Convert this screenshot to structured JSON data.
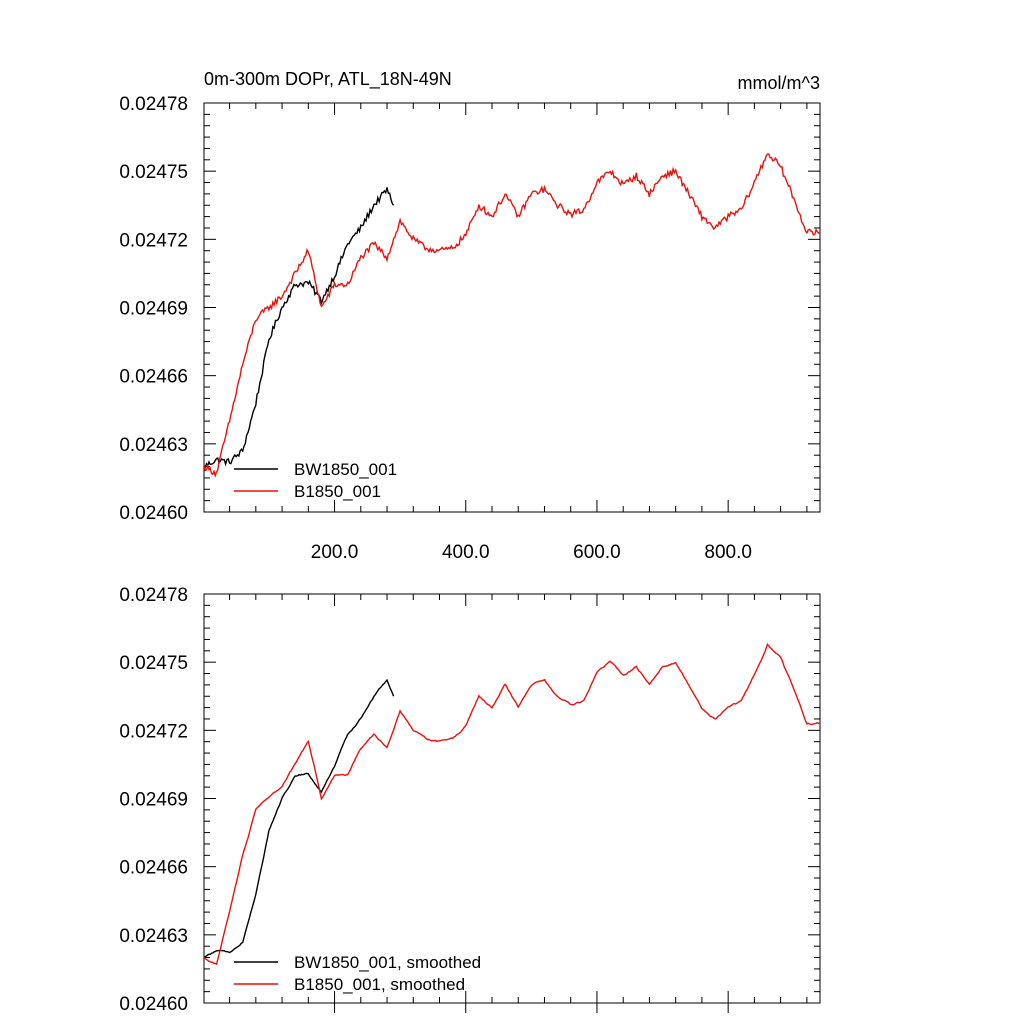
{
  "chart_data": [
    {
      "type": "line",
      "title": "0m-300m DOPr, ATL_18N-49N",
      "units": "mmol/m^3",
      "xlabel": "",
      "ylabel": "",
      "xlim": [
        1,
        940
      ],
      "ylim": [
        0.0246,
        0.02478
      ],
      "x_ticks": [
        200,
        400,
        600,
        800
      ],
      "x_tick_labels": [
        "200.0",
        "400.0",
        "600.0",
        "800.0"
      ],
      "y_ticks": [
        0.0246,
        0.02463,
        0.02466,
        0.02469,
        0.02472,
        0.02475,
        0.02478
      ],
      "y_tick_labels": [
        "0.02460",
        "0.02463",
        "0.02466",
        "0.02469",
        "0.02472",
        "0.02475",
        "0.02478"
      ],
      "grid": false,
      "legend_position": "bottom-left",
      "series": [
        {
          "name": "BW1850_001",
          "color": "#000000",
          "x": [
            1,
            20,
            40,
            60,
            80,
            100,
            120,
            140,
            160,
            180,
            200,
            220,
            240,
            260,
            280,
            290
          ],
          "y": [
            0.02462,
            0.024623,
            0.024622,
            0.024627,
            0.024648,
            0.024676,
            0.02469,
            0.0247,
            0.024701,
            0.024693,
            0.024704,
            0.024718,
            0.024725,
            0.024735,
            0.024742,
            0.024735
          ]
        },
        {
          "name": "B1850_001",
          "color": "#e8120c",
          "x": [
            1,
            20,
            40,
            60,
            80,
            100,
            120,
            140,
            160,
            180,
            200,
            220,
            240,
            260,
            280,
            300,
            320,
            340,
            360,
            380,
            400,
            420,
            440,
            460,
            480,
            500,
            520,
            540,
            560,
            580,
            600,
            620,
            640,
            660,
            680,
            700,
            720,
            740,
            760,
            780,
            800,
            820,
            840,
            860,
            880,
            900,
            920,
            940
          ],
          "y": [
            0.02462,
            0.024617,
            0.02464,
            0.024665,
            0.024685,
            0.02469,
            0.024695,
            0.024705,
            0.024715,
            0.02469,
            0.0247,
            0.0247,
            0.024712,
            0.024718,
            0.024712,
            0.024728,
            0.02472,
            0.024716,
            0.024715,
            0.024716,
            0.024722,
            0.024735,
            0.02473,
            0.02474,
            0.02473,
            0.02474,
            0.024742,
            0.024735,
            0.024731,
            0.024733,
            0.024745,
            0.02475,
            0.024744,
            0.024748,
            0.02474,
            0.024748,
            0.02475,
            0.02474,
            0.02473,
            0.024725,
            0.02473,
            0.024733,
            0.024745,
            0.024758,
            0.024752,
            0.024738,
            0.024723,
            0.024723
          ]
        }
      ]
    },
    {
      "type": "line",
      "title": "",
      "units": "",
      "xlabel": "",
      "ylabel": "",
      "xlim": [
        1,
        940
      ],
      "ylim": [
        0.0246,
        0.02478
      ],
      "x_ticks": [
        200,
        400,
        600,
        800
      ],
      "x_tick_labels": [],
      "y_ticks": [
        0.0246,
        0.02463,
        0.02466,
        0.02469,
        0.02472,
        0.02475,
        0.02478
      ],
      "y_tick_labels": [
        "0.02460",
        "0.02463",
        "0.02466",
        "0.02469",
        "0.02472",
        "0.02475",
        "0.02478"
      ],
      "grid": false,
      "legend_position": "bottom-left",
      "series": [
        {
          "name": "BW1850_001, smoothed",
          "color": "#000000",
          "x": [
            1,
            20,
            40,
            60,
            80,
            100,
            120,
            140,
            160,
            180,
            200,
            220,
            240,
            260,
            280,
            290
          ],
          "y": [
            0.02462,
            0.024623,
            0.024622,
            0.024627,
            0.024648,
            0.024676,
            0.02469,
            0.0247,
            0.024701,
            0.024693,
            0.024704,
            0.024718,
            0.024725,
            0.024735,
            0.024742,
            0.024735
          ]
        },
        {
          "name": "B1850_001, smoothed",
          "color": "#e8120c",
          "x": [
            1,
            20,
            40,
            60,
            80,
            100,
            120,
            140,
            160,
            180,
            200,
            220,
            240,
            260,
            280,
            300,
            320,
            340,
            360,
            380,
            400,
            420,
            440,
            460,
            480,
            500,
            520,
            540,
            560,
            580,
            600,
            620,
            640,
            660,
            680,
            700,
            720,
            740,
            760,
            780,
            800,
            820,
            840,
            860,
            880,
            900,
            920,
            940
          ],
          "y": [
            0.02462,
            0.024617,
            0.02464,
            0.024665,
            0.024685,
            0.02469,
            0.024695,
            0.024705,
            0.024715,
            0.02469,
            0.0247,
            0.0247,
            0.024712,
            0.024718,
            0.024712,
            0.024728,
            0.02472,
            0.024716,
            0.024715,
            0.024716,
            0.024722,
            0.024735,
            0.02473,
            0.02474,
            0.02473,
            0.02474,
            0.024742,
            0.024735,
            0.024731,
            0.024733,
            0.024745,
            0.02475,
            0.024744,
            0.024748,
            0.02474,
            0.024748,
            0.02475,
            0.02474,
            0.02473,
            0.024725,
            0.02473,
            0.024733,
            0.024745,
            0.024758,
            0.024752,
            0.024738,
            0.024723,
            0.024723
          ]
        }
      ]
    }
  ]
}
